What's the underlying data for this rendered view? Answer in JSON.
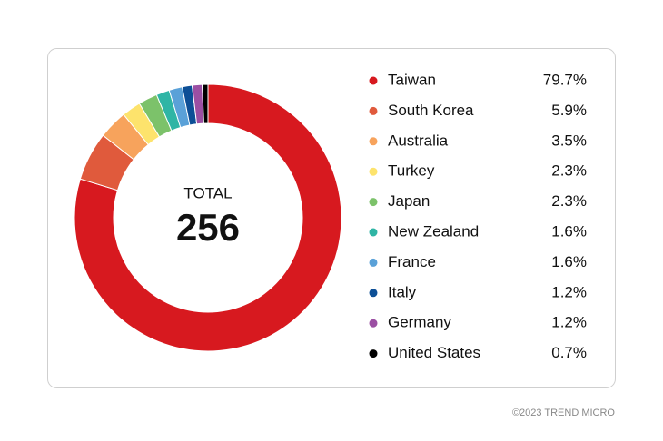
{
  "chart_data": {
    "type": "donut",
    "center_title": "TOTAL",
    "center_value": 256,
    "categories": [
      "Taiwan",
      "South Korea",
      "Australia",
      "Turkey",
      "Japan",
      "New Zealand",
      "France",
      "Italy",
      "Germany",
      "United States"
    ],
    "values": [
      79.7,
      5.9,
      3.5,
      2.3,
      2.3,
      1.6,
      1.6,
      1.2,
      1.2,
      0.7
    ],
    "value_labels": [
      "79.7%",
      "5.9%",
      "3.5%",
      "2.3%",
      "2.3%",
      "1.6%",
      "1.6%",
      "1.2%",
      "1.2%",
      "0.7%"
    ],
    "colors": [
      "#d7191f",
      "#e05a3c",
      "#f7a35c",
      "#fde36c",
      "#7cc26a",
      "#2fb5a5",
      "#5aa1d8",
      "#0d4f96",
      "#9b4fa3",
      "#000000"
    ],
    "legend": "right",
    "footer": "©2023 TREND MICRO"
  }
}
